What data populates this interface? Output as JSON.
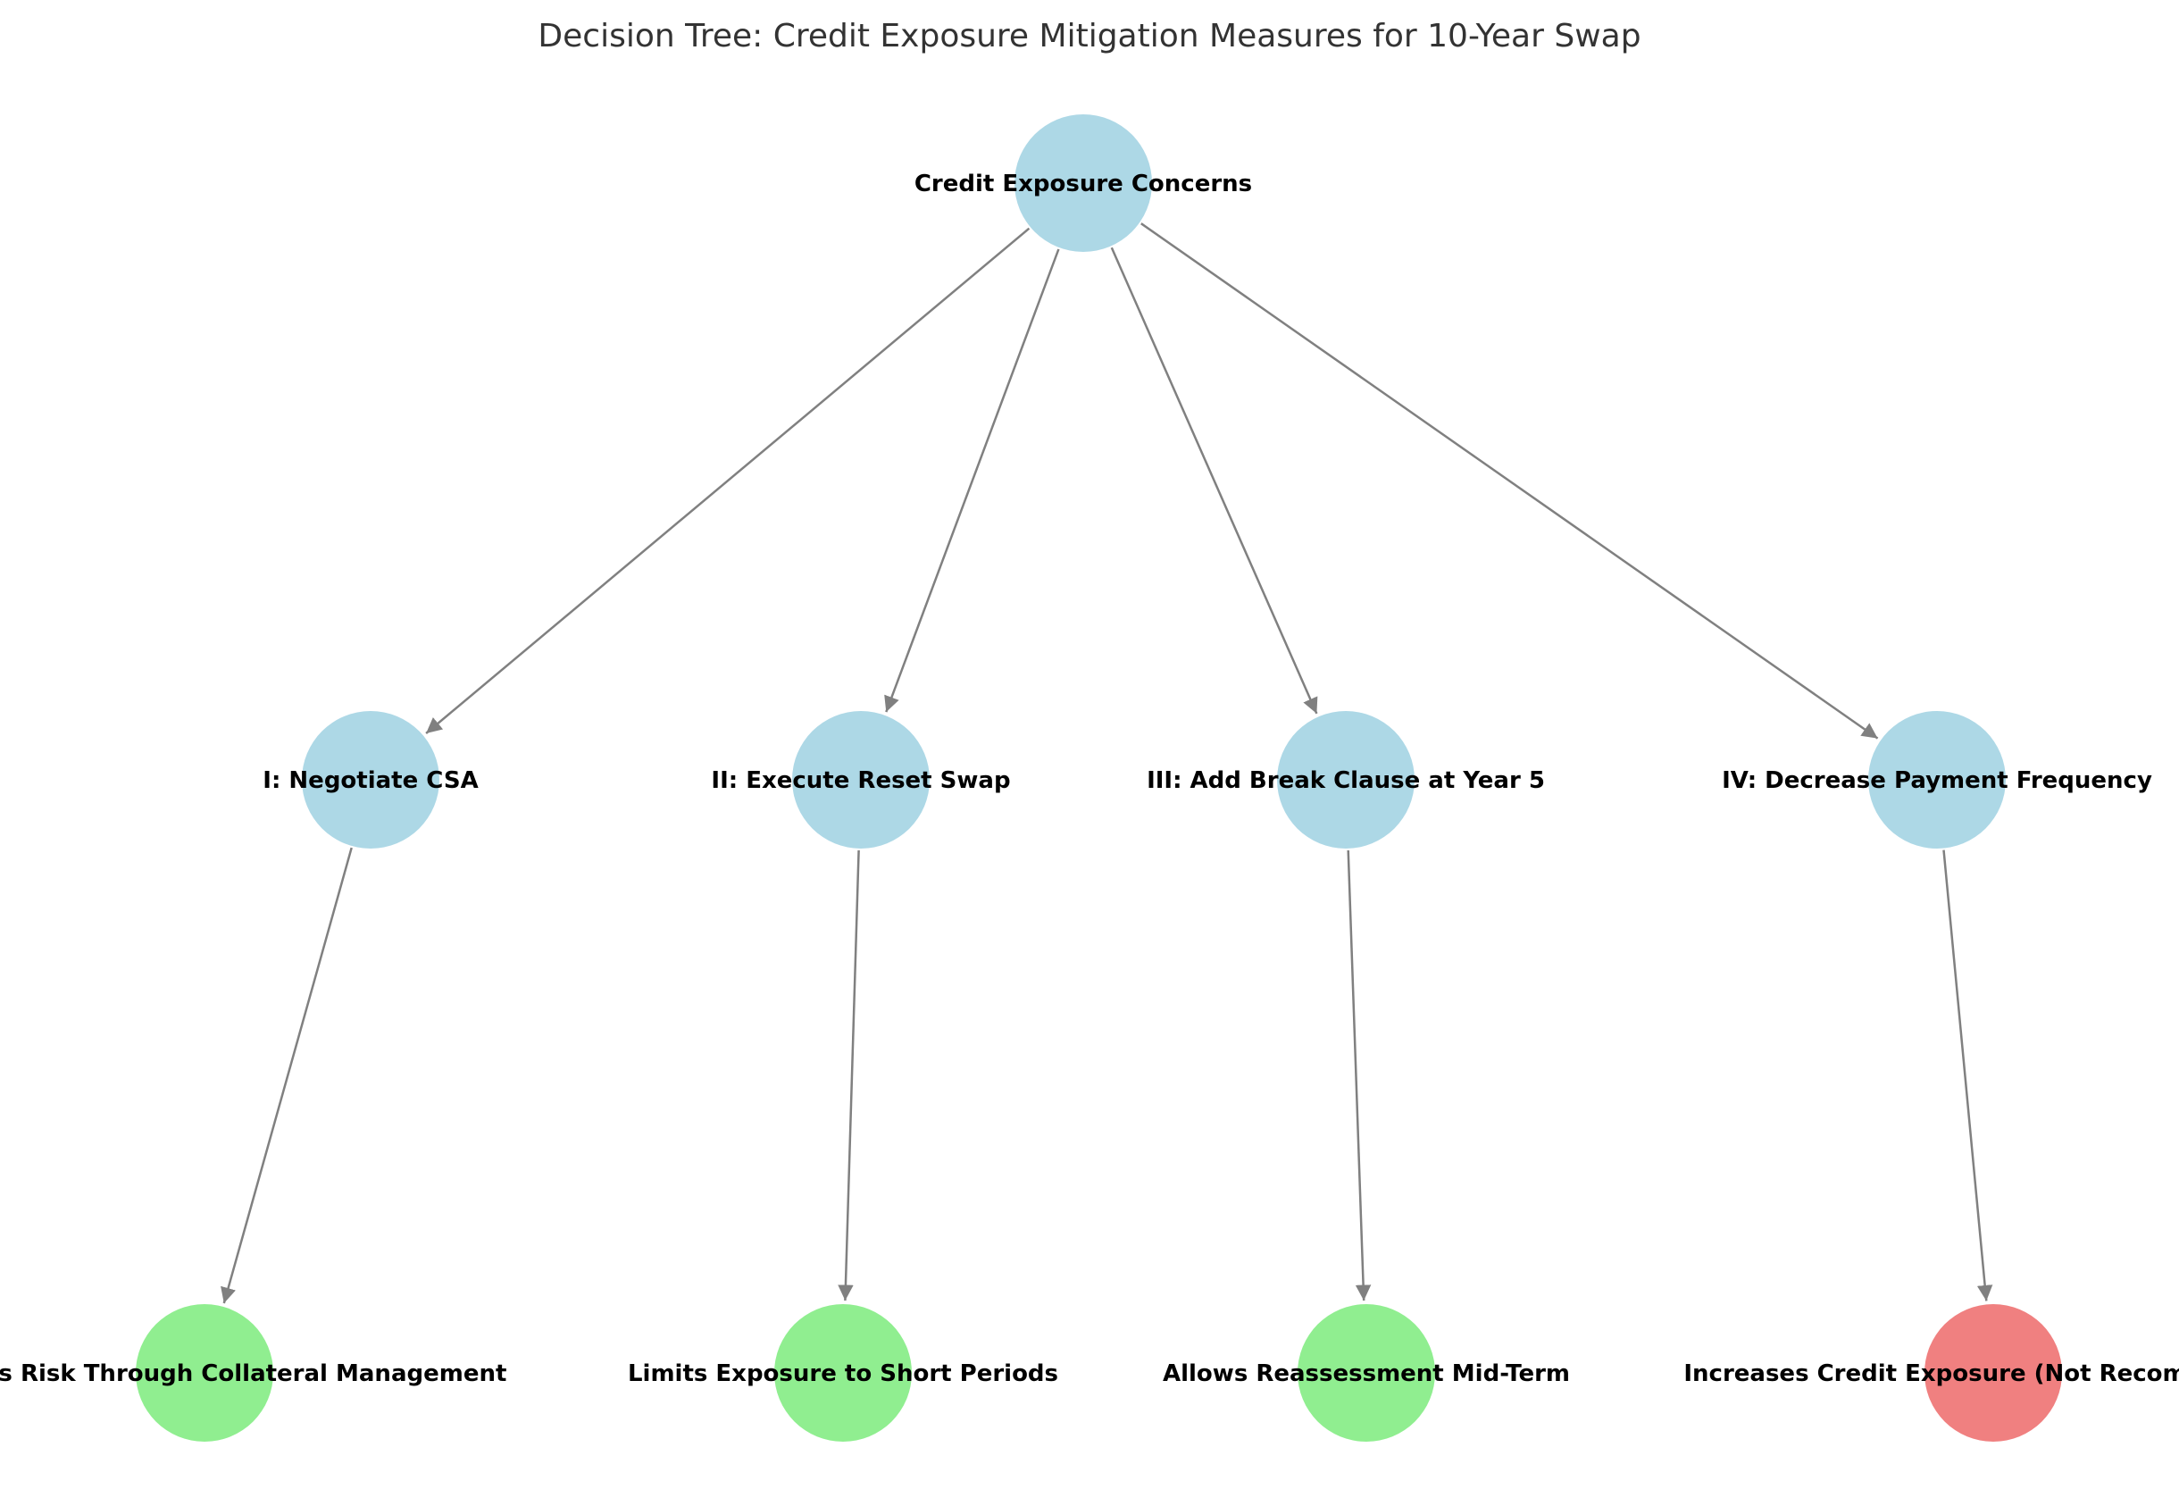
{
  "title": "Decision Tree: Credit Exposure Mitigation Measures for 10-Year Swap",
  "colors": {
    "decision": "#add8e6",
    "positive": "#90ee90",
    "negative": "#f08080",
    "edge": "#808080"
  },
  "nodes": [
    {
      "id": "root",
      "label": "Credit Exposure Concerns",
      "kind": "decision"
    },
    {
      "id": "opt1",
      "label": "I: Negotiate CSA",
      "kind": "decision"
    },
    {
      "id": "opt2",
      "label": "II: Execute Reset Swap",
      "kind": "decision"
    },
    {
      "id": "opt3",
      "label": "III: Add Break Clause at Year 5",
      "kind": "decision"
    },
    {
      "id": "opt4",
      "label": "IV: Decrease Payment Frequency",
      "kind": "decision"
    },
    {
      "id": "out1",
      "label": "Reduces Risk Through Collateral Management",
      "kind": "positive"
    },
    {
      "id": "out2",
      "label": "Limits Exposure to Short Periods",
      "kind": "positive"
    },
    {
      "id": "out3",
      "label": "Allows Reassessment Mid-Term",
      "kind": "positive"
    },
    {
      "id": "out4",
      "label": "Increases Credit Exposure (Not Recommended)",
      "kind": "negative"
    }
  ],
  "edges": [
    [
      "root",
      "opt1"
    ],
    [
      "root",
      "opt2"
    ],
    [
      "root",
      "opt3"
    ],
    [
      "root",
      "opt4"
    ],
    [
      "opt1",
      "out1"
    ],
    [
      "opt2",
      "out2"
    ],
    [
      "opt3",
      "out3"
    ],
    [
      "opt4",
      "out4"
    ]
  ]
}
